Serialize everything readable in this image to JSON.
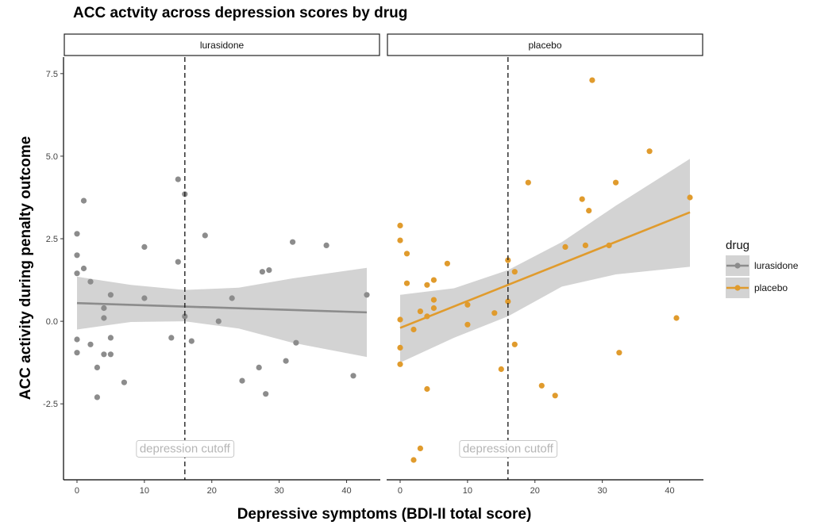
{
  "chart_data": {
    "type": "scatter",
    "title": "ACC actvity across depression scores by drug",
    "xlabel": "Depressive symptoms (BDI-II total score)",
    "ylabel": "ACC activity during penalty outcome",
    "xlim": [
      -2,
      45
    ],
    "ylim": [
      -4.8,
      8.0
    ],
    "x_ticks": [
      0,
      10,
      20,
      30,
      40
    ],
    "y_ticks": [
      -2.5,
      0.0,
      2.5,
      5.0,
      7.5
    ],
    "y_tick_labels": [
      "-2.5",
      "0.0",
      "2.5",
      "5.0",
      "7.5"
    ],
    "grid": false,
    "facet_variable": "drug",
    "legend": {
      "title": "drug",
      "position": "right",
      "entries": [
        "lurasidone",
        "placebo"
      ]
    },
    "cutoff": {
      "x": 16,
      "label": "depression cutoff",
      "label_y": -3.85
    },
    "panels": [
      {
        "name": "lurasidone",
        "color": "#8c8c8c",
        "points": [
          [
            0,
            2.65
          ],
          [
            0,
            2.0
          ],
          [
            0,
            1.45
          ],
          [
            0,
            -0.55
          ],
          [
            0,
            -0.95
          ],
          [
            1,
            3.65
          ],
          [
            1,
            1.6
          ],
          [
            2,
            1.2
          ],
          [
            2,
            -0.7
          ],
          [
            3,
            -1.4
          ],
          [
            3,
            -2.3
          ],
          [
            4,
            0.4
          ],
          [
            4,
            0.1
          ],
          [
            4,
            -1.0
          ],
          [
            5,
            0.8
          ],
          [
            5,
            -0.5
          ],
          [
            5,
            -1.0
          ],
          [
            7,
            -1.85
          ],
          [
            10,
            2.25
          ],
          [
            10,
            0.7
          ],
          [
            14,
            -0.5
          ],
          [
            15,
            4.3
          ],
          [
            15,
            1.8
          ],
          [
            16,
            3.85
          ],
          [
            16,
            0.15
          ],
          [
            17,
            -0.6
          ],
          [
            19,
            2.6
          ],
          [
            21,
            0.0
          ],
          [
            23,
            0.7
          ],
          [
            24.5,
            -1.8
          ],
          [
            27,
            -1.4
          ],
          [
            27.5,
            1.5
          ],
          [
            28,
            -2.2
          ],
          [
            28.5,
            1.55
          ],
          [
            31,
            -1.2
          ],
          [
            32,
            2.4
          ],
          [
            32.5,
            -0.65
          ],
          [
            37,
            2.3
          ],
          [
            41,
            -1.65
          ],
          [
            43,
            0.8
          ]
        ],
        "fit": {
          "x": [
            0,
            43
          ],
          "y": [
            0.55,
            0.27
          ]
        },
        "ci_upper": [
          1.35,
          1.1,
          0.95,
          1.02,
          1.3,
          1.62
        ],
        "ci_lower": [
          -0.25,
          -0.02,
          0.0,
          -0.22,
          -0.65,
          -1.08
        ]
      },
      {
        "name": "placebo",
        "color": "#e09b2d",
        "points": [
          [
            0,
            2.9
          ],
          [
            0,
            2.45
          ],
          [
            0,
            0.05
          ],
          [
            0,
            -0.8
          ],
          [
            0,
            -1.3
          ],
          [
            1,
            2.05
          ],
          [
            1,
            1.15
          ],
          [
            2,
            -0.25
          ],
          [
            2,
            -4.2
          ],
          [
            3,
            0.3
          ],
          [
            3,
            -3.85
          ],
          [
            4,
            1.1
          ],
          [
            4,
            0.15
          ],
          [
            4,
            -2.05
          ],
          [
            5,
            1.25
          ],
          [
            5,
            0.65
          ],
          [
            5,
            0.4
          ],
          [
            7,
            1.75
          ],
          [
            10,
            0.5
          ],
          [
            10,
            -0.1
          ],
          [
            14,
            0.25
          ],
          [
            15,
            -1.45
          ],
          [
            16,
            1.85
          ],
          [
            16,
            0.6
          ],
          [
            17,
            1.5
          ],
          [
            17,
            -0.7
          ],
          [
            19,
            4.2
          ],
          [
            21,
            -1.95
          ],
          [
            23,
            -2.25
          ],
          [
            24.5,
            2.25
          ],
          [
            27,
            3.7
          ],
          [
            27.5,
            2.3
          ],
          [
            28,
            3.35
          ],
          [
            28.5,
            7.3
          ],
          [
            31,
            2.3
          ],
          [
            32,
            4.2
          ],
          [
            32.5,
            -0.95
          ],
          [
            37,
            5.15
          ],
          [
            41,
            0.1
          ],
          [
            43,
            3.75
          ]
        ],
        "fit": {
          "x": [
            0,
            43
          ],
          "y": [
            -0.2,
            3.3
          ]
        },
        "ci_upper": [
          0.8,
          1.0,
          1.55,
          2.4,
          3.5,
          4.92
        ],
        "ci_lower": [
          -1.25,
          -0.5,
          0.15,
          1.05,
          1.42,
          1.65
        ]
      }
    ],
    "ci_x": [
      0,
      8,
      16,
      24,
      32,
      43
    ],
    "ci_fill": "#d3d3d3"
  }
}
